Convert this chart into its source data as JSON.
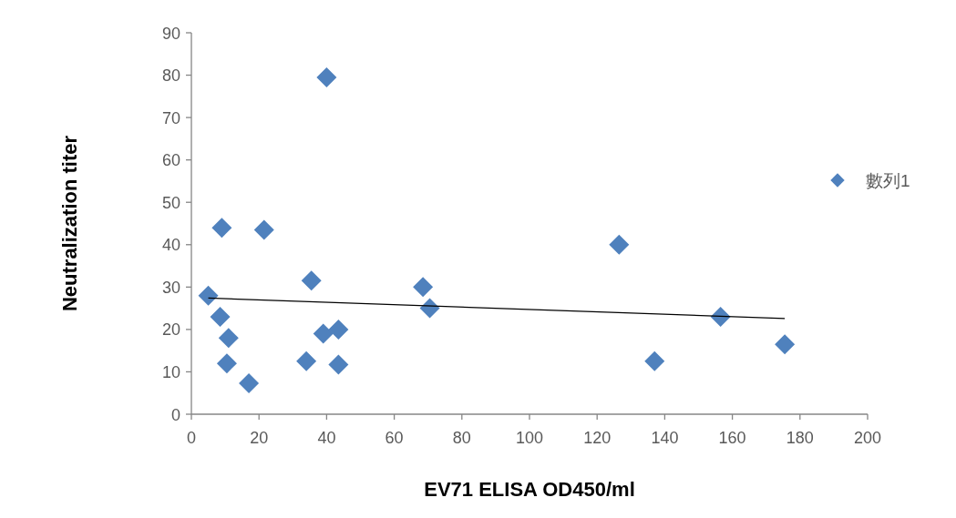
{
  "chart_data": {
    "type": "scatter",
    "xlabel": "EV71 ELISA OD450/ml",
    "ylabel": "Neutralization titer",
    "xlim": [
      0,
      200
    ],
    "ylim": [
      0,
      90
    ],
    "xticks": [
      0,
      20,
      40,
      60,
      80,
      100,
      120,
      140,
      160,
      180,
      200
    ],
    "yticks": [
      0,
      10,
      20,
      30,
      40,
      50,
      60,
      70,
      80,
      90
    ],
    "grid": false,
    "legend": "right",
    "series": [
      {
        "name": "數列1",
        "color": "#4f81bd",
        "marker": "diamond",
        "x": [
          5,
          8.5,
          9,
          11,
          10.5,
          17,
          21.5,
          34,
          35.5,
          39,
          40,
          43.5,
          43.5,
          68.5,
          70.5,
          126.5,
          137,
          156.5,
          175.5
        ],
        "values": [
          28,
          23,
          44,
          18,
          12,
          7.3,
          43.5,
          12.5,
          31.5,
          19,
          79.5,
          20,
          11.7,
          30,
          25,
          40,
          12.5,
          23,
          16.5
        ]
      },
      {
        "type": "line",
        "color": "#000000",
        "marker": "none",
        "x": [
          5,
          175.5
        ],
        "values": [
          27.4,
          22.6
        ]
      }
    ]
  }
}
